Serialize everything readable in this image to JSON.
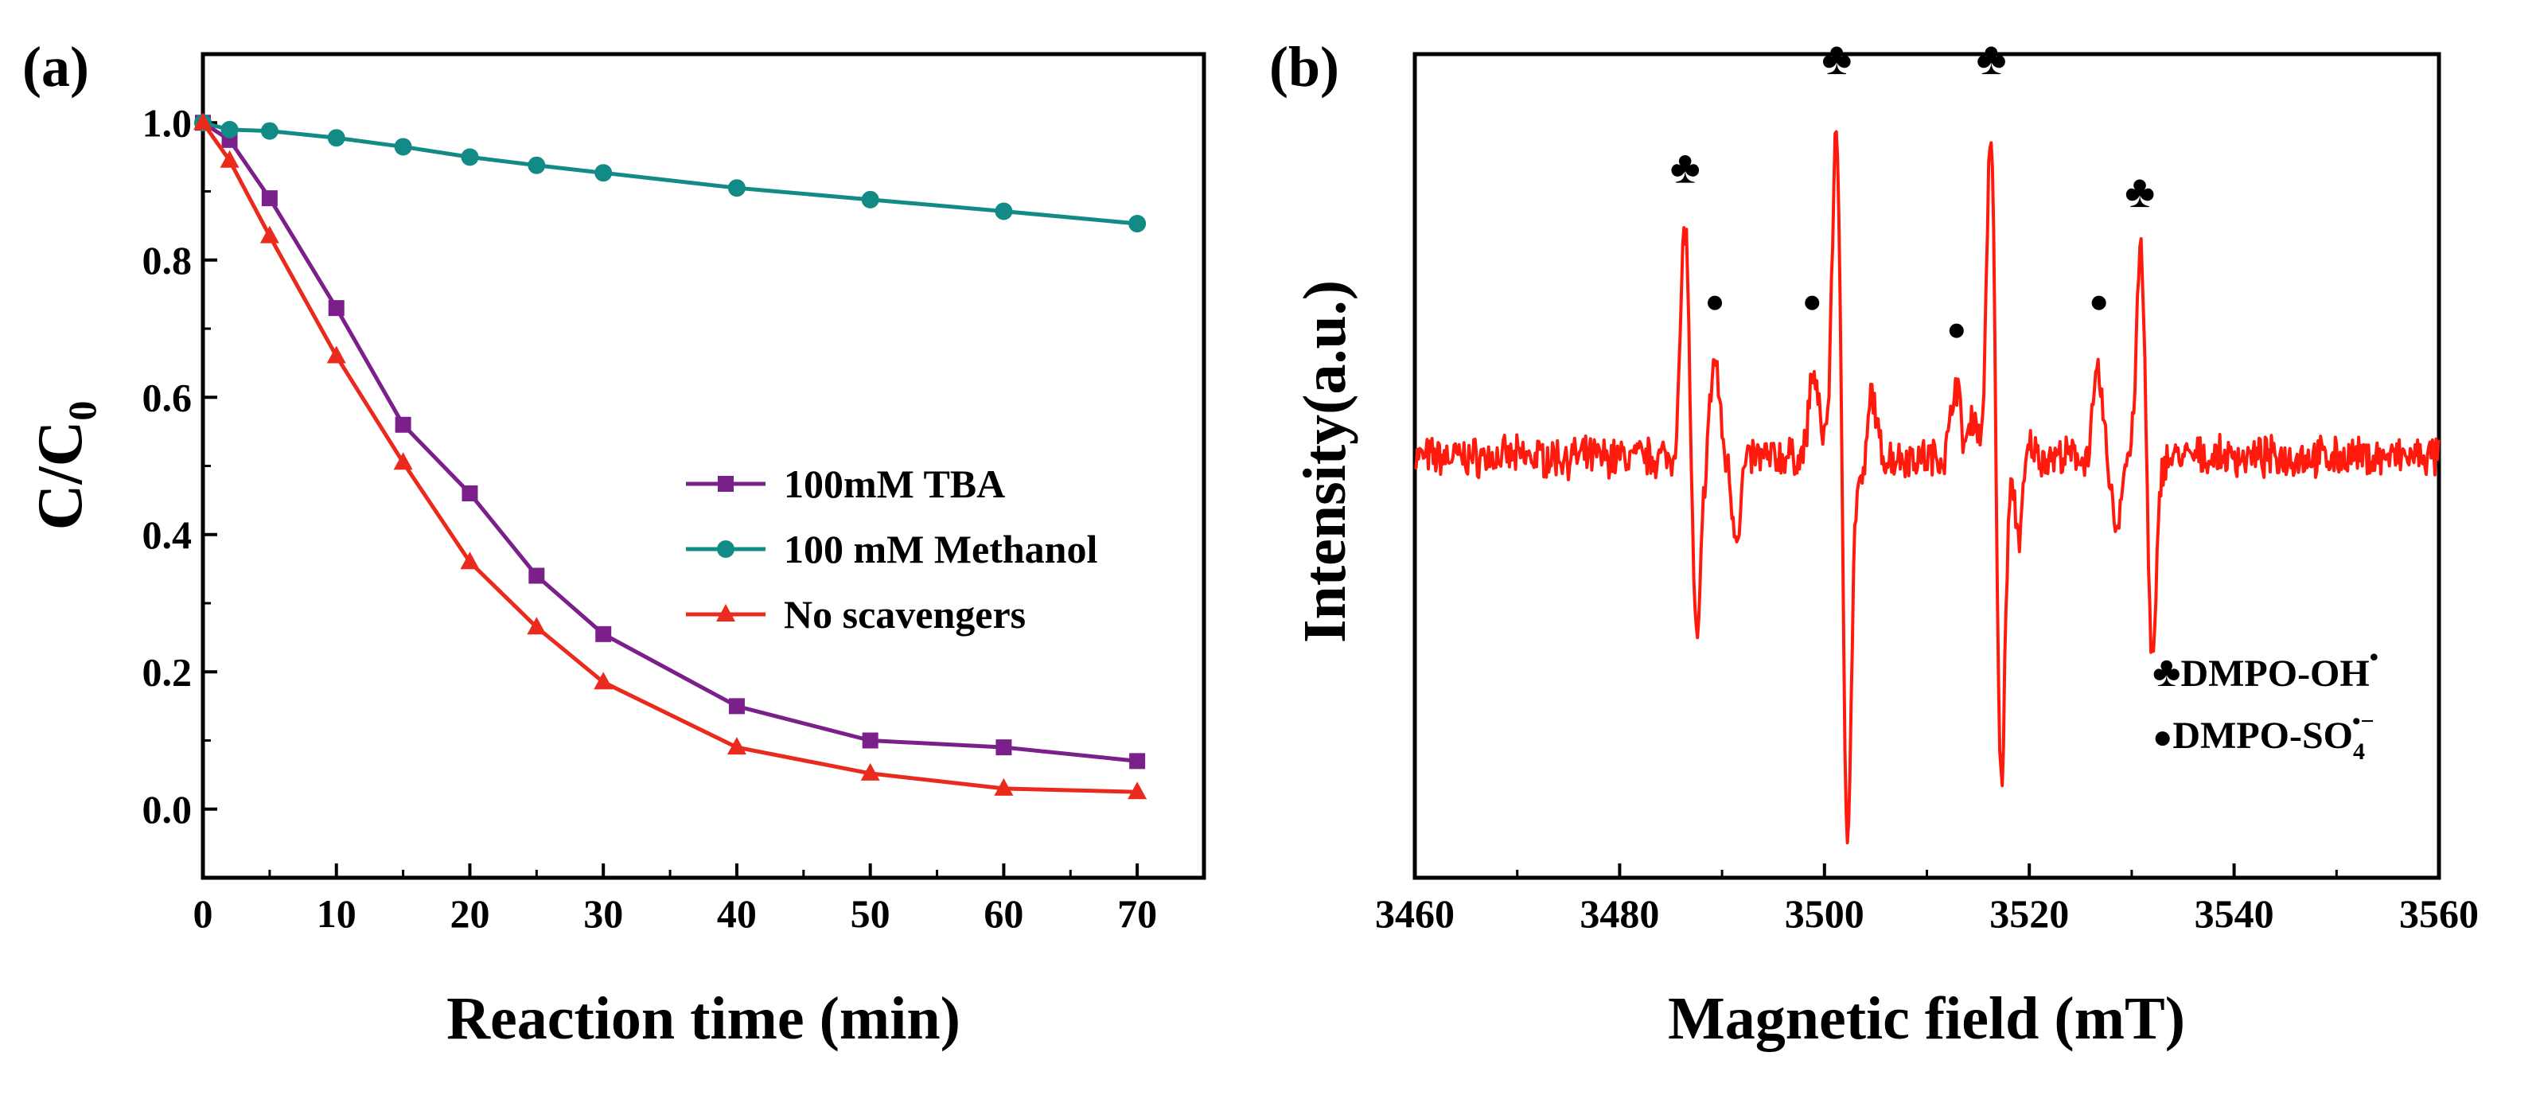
{
  "chart_data": [
    {
      "panel_label": "(a)",
      "type": "line",
      "xlabel": "Reaction time (min)",
      "ylabel_main": "C/C",
      "ylabel_sub": "0",
      "xlim": [
        0,
        75
      ],
      "ylim": [
        -0.1,
        1.1
      ],
      "xticks": [
        0,
        10,
        20,
        30,
        40,
        50,
        60,
        70
      ],
      "yticks": [
        0.0,
        0.2,
        0.4,
        0.6,
        0.8,
        1.0
      ],
      "legend_position": "center-right",
      "series": [
        {
          "name": "100mM TBA",
          "color": "#7b1f8a",
          "marker": "square",
          "x": [
            0,
            2,
            5,
            10,
            15,
            20,
            25,
            30,
            40,
            50,
            60,
            70
          ],
          "y": [
            1.0,
            0.975,
            0.89,
            0.73,
            0.56,
            0.46,
            0.34,
            0.255,
            0.15,
            0.1,
            0.09,
            0.07
          ]
        },
        {
          "name": "100 mM Methanol",
          "color": "#128a86",
          "marker": "circle",
          "x": [
            0,
            2,
            5,
            10,
            15,
            20,
            25,
            30,
            40,
            50,
            60,
            70
          ],
          "y": [
            1.0,
            0.99,
            0.988,
            0.978,
            0.965,
            0.95,
            0.938,
            0.927,
            0.905,
            0.888,
            0.871,
            0.853
          ]
        },
        {
          "name": "No scavengers",
          "color": "#ea2a1c",
          "marker": "triangle",
          "x": [
            0,
            2,
            5,
            10,
            15,
            20,
            25,
            30,
            40,
            50,
            60,
            70
          ],
          "y": [
            1.0,
            0.945,
            0.835,
            0.66,
            0.505,
            0.36,
            0.265,
            0.185,
            0.09,
            0.052,
            0.03,
            0.025
          ]
        }
      ]
    },
    {
      "panel_label": "(b)",
      "type": "line",
      "xlabel": "Magnetic field (mT)",
      "ylabel": "Intensity(a.u.)",
      "xlim": [
        3460,
        3560
      ],
      "ylim": [
        -1.2,
        1.15
      ],
      "xticks": [
        3460,
        3480,
        3500,
        3520,
        3540,
        3560
      ],
      "series": [
        {
          "name": "EPR spectrum",
          "color": "#ff1a0d",
          "baseline": 0,
          "peaks": [
            {
              "x": 3486.4,
              "y": 0.68
            },
            {
              "x": 3487.5,
              "y": -0.55
            },
            {
              "x": 3489.3,
              "y": 0.28
            },
            {
              "x": 3491.4,
              "y": -0.22
            },
            {
              "x": 3498.9,
              "y": 0.24
            },
            {
              "x": 3499.9,
              "y": 0.05
            },
            {
              "x": 3501.2,
              "y": 1.0
            },
            {
              "x": 3502.2,
              "y": -1.1
            },
            {
              "x": 3503.8,
              "y": -0.1
            },
            {
              "x": 3504.6,
              "y": 0.2
            },
            {
              "x": 3512.8,
              "y": 0.22
            },
            {
              "x": 3514.5,
              "y": 0.12
            },
            {
              "x": 3516.3,
              "y": 1.0
            },
            {
              "x": 3517.2,
              "y": -1.0
            },
            {
              "x": 3519.0,
              "y": -0.22
            },
            {
              "x": 3520.0,
              "y": 0.04
            },
            {
              "x": 3526.7,
              "y": 0.24
            },
            {
              "x": 3528.5,
              "y": -0.2
            },
            {
              "x": 3530.9,
              "y": 0.6
            },
            {
              "x": 3532.0,
              "y": -0.6
            }
          ]
        }
      ],
      "annotations": [
        {
          "symbol": "♣",
          "x": 3486.4,
          "y": 0.82
        },
        {
          "symbol": "●",
          "x": 3489.3,
          "y": 0.45
        },
        {
          "symbol": "●",
          "x": 3498.8,
          "y": 0.45
        },
        {
          "symbol": "♣",
          "x": 3501.2,
          "y": 1.13
        },
        {
          "symbol": "●",
          "x": 3512.9,
          "y": 0.37
        },
        {
          "symbol": "♣",
          "x": 3516.3,
          "y": 1.13
        },
        {
          "symbol": "●",
          "x": 3526.8,
          "y": 0.45
        },
        {
          "symbol": "♣",
          "x": 3530.8,
          "y": 0.75
        }
      ],
      "legend": [
        {
          "symbol": "♣",
          "label": "DMPO-OH",
          "sup": "•",
          "sub": ""
        },
        {
          "symbol": "●",
          "label": "DMPO-SO",
          "sup": "•−",
          "sub": "4"
        }
      ],
      "legend_position": "bottom-right"
    }
  ]
}
